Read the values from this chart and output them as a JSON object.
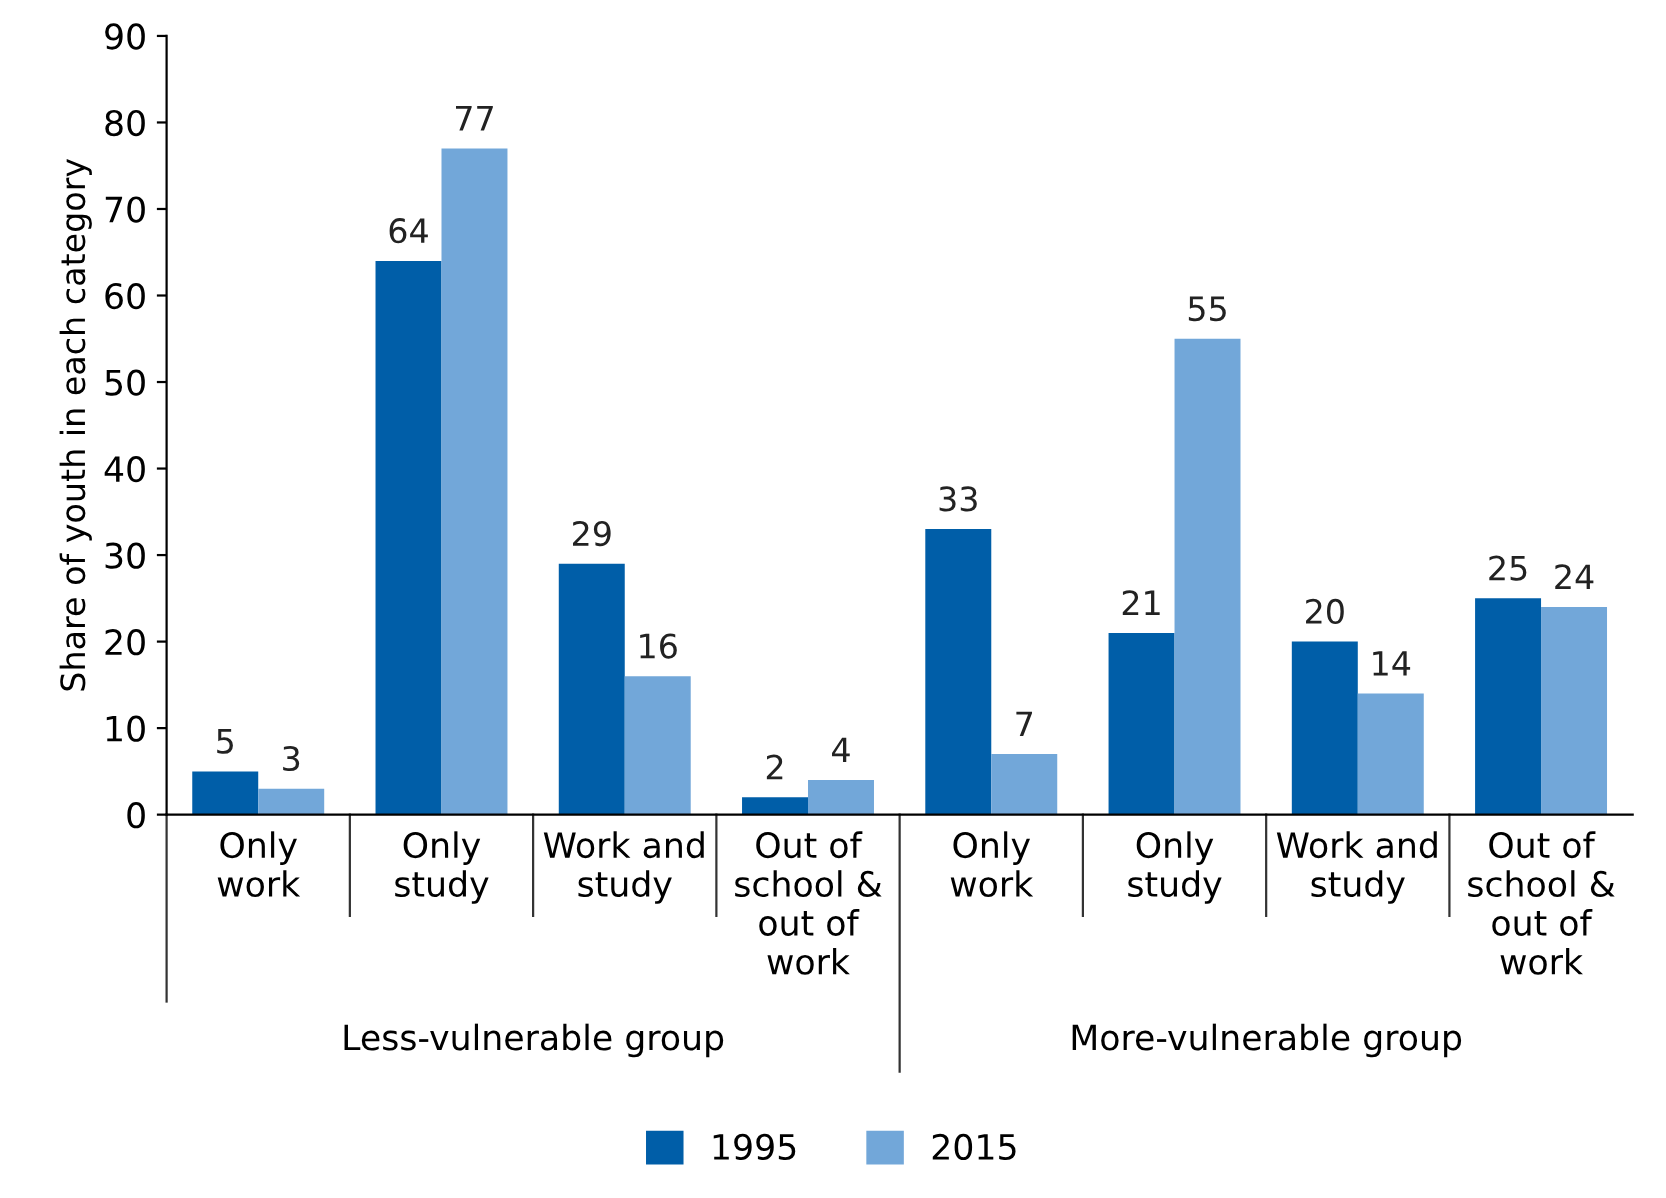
{
  "chart_data": {
    "type": "bar",
    "ylabel": "Share of youth in each category",
    "categories": [
      "Only\nwork",
      "Only\nstudy",
      "Work and\nstudy",
      "Out of\nschool &\nout of\nwork",
      "Only\nwork",
      "Only\nstudy",
      "Work and\nstudy",
      "Out of\nschool &\nout of\nwork"
    ],
    "series": [
      {
        "name": "1995",
        "color": "#005ea8",
        "values": [
          5,
          64,
          29,
          2,
          33,
          21,
          20,
          25
        ]
      },
      {
        "name": "2015",
        "color": "#72a7d9",
        "values": [
          3,
          77,
          16,
          4,
          7,
          55,
          14,
          24
        ]
      }
    ],
    "annotations": [
      "Less-vulnerable group",
      "More-vulnerable group"
    ],
    "ylim": [
      0,
      90
    ],
    "yticks": [
      0,
      10,
      20,
      30,
      40,
      50,
      60,
      70,
      80,
      90
    ],
    "data_labels": true,
    "legend": "bottom",
    "grid": false
  }
}
